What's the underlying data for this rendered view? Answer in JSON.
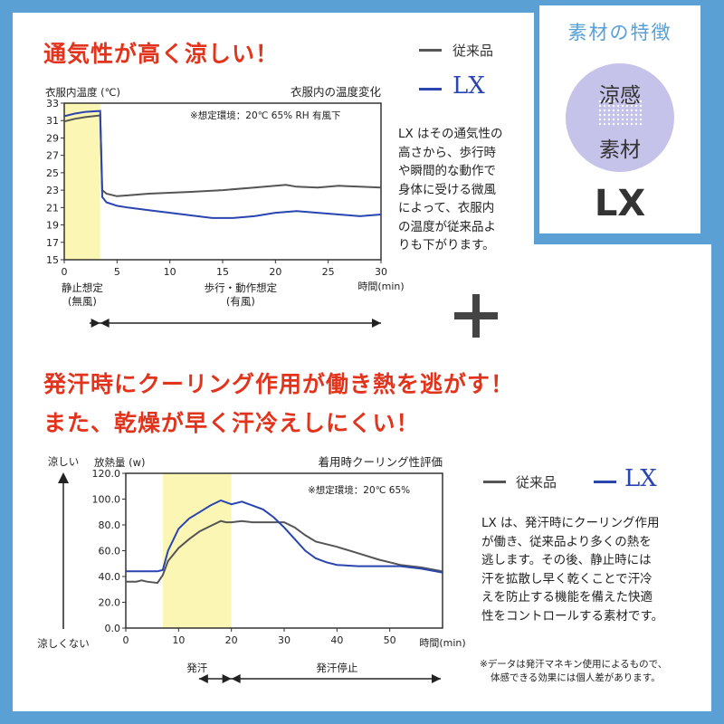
{
  "top": {
    "headline": "通気性が高く涼しい！",
    "legend_conv": "従来品",
    "legend_lx": "LX",
    "paragraph": [
      "LX はその通気性の",
      "高さから、歩行時",
      "や瞬間的な動作で",
      "身体に受ける微風",
      "によって、衣服内",
      "の温度が従来品よ",
      "りも下がります。"
    ]
  },
  "feature": {
    "title": "素材の特徴",
    "circle_line1": "涼感",
    "circle_line2": "素材",
    "brand": "LX"
  },
  "plus": "+",
  "middle": {
    "headline1": "発汗時にクーリング作用が働き熱を逃がす！",
    "headline2": "また、乾燥が早く汗冷えしにくい！"
  },
  "bottom": {
    "legend_conv": "従来品",
    "legend_lx": "LX",
    "paragraph": [
      "LX は、発汗時にクーリング作用",
      "が働き、従来品より多くの熱を",
      "逃します。その後、静止時には",
      "汗を拡散し早く乾くことで汗冷",
      "えを防止する機能を備えた快適",
      "性をコントロールする素材です。"
    ],
    "footnote": [
      "※データは発汗マネキン使用によるもので、",
      "体感できる効果には個人差があります。"
    ]
  },
  "colors": {
    "red": "#e2341c",
    "blue": "#2a44b0",
    "gray": "#555555",
    "yellow": "#fbf6b4",
    "frame": "#5aa0d5",
    "lavender": "#c6c3ea"
  },
  "chart_data": [
    {
      "type": "line",
      "title": "衣服内の温度変化",
      "ylabel": "衣服内温度 (℃)",
      "xlabel": "時間(min)",
      "annotation": "※想定環境：20℃ 65% RH 有風下",
      "xlim": [
        0,
        30
      ],
      "ylim": [
        15,
        33
      ],
      "xticks": [
        0,
        5,
        10,
        15,
        20,
        25,
        30
      ],
      "yticks": [
        15,
        17,
        19,
        21,
        23,
        25,
        27,
        29,
        31,
        33
      ],
      "ytick_labels": [
        "15",
        "17",
        "19",
        "21",
        "23",
        "25",
        "27",
        "29",
        "31",
        "33"
      ],
      "highlight": [
        0,
        3.4
      ],
      "phases": [
        {
          "label": "静止想定",
          "sub": "(無風)",
          "from": 0,
          "to": 3.4
        },
        {
          "label": "歩行・動作想定",
          "sub": "(有風)",
          "from": 3.4,
          "to": 30
        }
      ],
      "series": [
        {
          "name": "従来品",
          "color": "#555555",
          "x": [
            0,
            1,
            2,
            3.4,
            3.6,
            4,
            5,
            6,
            8,
            10,
            12,
            15,
            18,
            20,
            21,
            22,
            24,
            26,
            28,
            30
          ],
          "y": [
            30.9,
            31.2,
            31.4,
            31.6,
            23.0,
            22.6,
            22.3,
            22.4,
            22.6,
            22.7,
            22.8,
            23.0,
            23.3,
            23.5,
            23.6,
            23.4,
            23.3,
            23.5,
            23.4,
            23.3
          ]
        },
        {
          "name": "LX",
          "color": "#2a44b0",
          "x": [
            0,
            1,
            2,
            3.4,
            3.6,
            4,
            5,
            6,
            8,
            10,
            12,
            14,
            16,
            18,
            20,
            22,
            24,
            26,
            28,
            30
          ],
          "y": [
            31.5,
            31.8,
            32.0,
            32.1,
            22.2,
            21.6,
            21.2,
            21.0,
            20.7,
            20.4,
            20.1,
            19.8,
            19.8,
            20.0,
            20.4,
            20.6,
            20.4,
            20.2,
            20.0,
            20.2
          ]
        }
      ]
    },
    {
      "type": "line",
      "title": "着用時クーリング性評価",
      "ylabel": "放熱量 (w)",
      "xlabel": "時間(min)",
      "annotation": "※想定環境：20℃ 65%",
      "side_top": "涼しい",
      "side_bottom": "涼しくない",
      "xlim": [
        0,
        60
      ],
      "ylim": [
        0,
        120
      ],
      "xticks": [
        0,
        10,
        20,
        30,
        40,
        50
      ],
      "yticks": [
        0,
        20,
        40,
        60,
        80,
        100,
        120
      ],
      "ytick_labels": [
        "0.0",
        "20.0",
        "40.0",
        "60.0",
        "80.0",
        "100.0",
        "120.0"
      ],
      "highlight": [
        7,
        20
      ],
      "phases": [
        {
          "label": "発汗",
          "from": 7,
          "to": 20
        },
        {
          "label": "発汗停止",
          "from": 20,
          "to": 60
        }
      ],
      "series": [
        {
          "name": "従来品",
          "color": "#555555",
          "x": [
            0,
            2,
            3,
            4,
            6,
            7,
            8,
            10,
            12,
            14,
            16,
            18,
            19,
            20,
            22,
            24,
            26,
            28,
            30,
            32,
            34,
            36,
            40,
            44,
            48,
            52,
            56,
            60
          ],
          "y": [
            36,
            36,
            37,
            36,
            35,
            41,
            52,
            62,
            69,
            75,
            79,
            83,
            82,
            82,
            83,
            82,
            82,
            82,
            82,
            78,
            72,
            67,
            63,
            58,
            53,
            49,
            47,
            44
          ]
        },
        {
          "name": "LX",
          "color": "#2a44b0",
          "x": [
            0,
            2,
            4,
            6,
            7,
            8,
            10,
            12,
            14,
            16,
            18,
            20,
            22,
            24,
            26,
            28,
            30,
            32,
            34,
            36,
            38,
            40,
            44,
            48,
            52,
            56,
            60
          ],
          "y": [
            44,
            44,
            44,
            44,
            45,
            60,
            77,
            85,
            90,
            95,
            99,
            96,
            98,
            95,
            92,
            86,
            78,
            69,
            60,
            54,
            51,
            49,
            48,
            48,
            48,
            46,
            43
          ]
        }
      ]
    }
  ]
}
